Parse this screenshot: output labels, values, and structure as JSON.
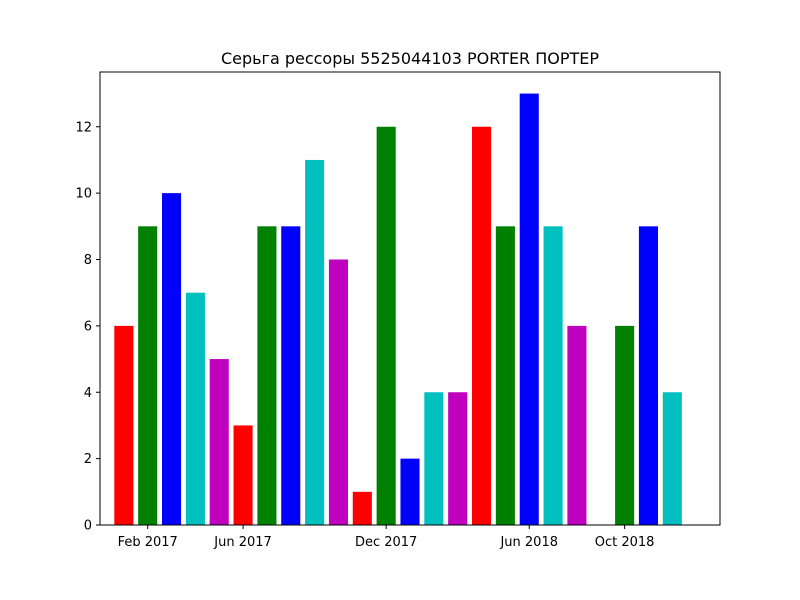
{
  "chart_data": {
    "type": "bar",
    "title": "Серьга рессоры 5525044103 PORTER ПОРТЕР",
    "xlabel": "",
    "ylabel": "",
    "x": [
      "2017-01",
      "2017-02",
      "2017-03",
      "2017-04",
      "2017-05",
      "2017-06",
      "2017-07",
      "2017-08",
      "2017-09",
      "2017-10",
      "2017-11",
      "2017-12",
      "2018-01",
      "2018-02",
      "2018-03",
      "2018-04",
      "2018-05",
      "2018-06",
      "2018-07",
      "2018-08",
      "2018-09",
      "2018-10",
      "2018-11",
      "2018-12",
      "2019-01"
    ],
    "values": [
      6,
      9,
      10,
      7,
      5,
      3,
      9,
      9,
      11,
      8,
      1,
      12,
      2,
      4,
      4,
      12,
      9,
      13,
      9,
      6,
      0,
      6,
      9,
      4,
      null
    ],
    "colors": [
      "#ff0000",
      "#008000",
      "#0000ff",
      "#00bfbf",
      "#bf00bf"
    ],
    "xticks": [
      {
        "label": "Feb 2017",
        "x": "2017-02"
      },
      {
        "label": "Jun 2017",
        "x": "2017-06"
      },
      {
        "label": "Dec 2017",
        "x": "2017-12"
      },
      {
        "label": "Jun 2018",
        "x": "2018-06"
      },
      {
        "label": "Oct 2018",
        "x": "2018-10"
      }
    ],
    "yticks": [
      0,
      2,
      4,
      6,
      8,
      10,
      12
    ],
    "ylim": [
      0,
      13.65
    ],
    "xlim": [
      "2016-12",
      "2019-02"
    ],
    "grid": false,
    "legend": "none"
  }
}
